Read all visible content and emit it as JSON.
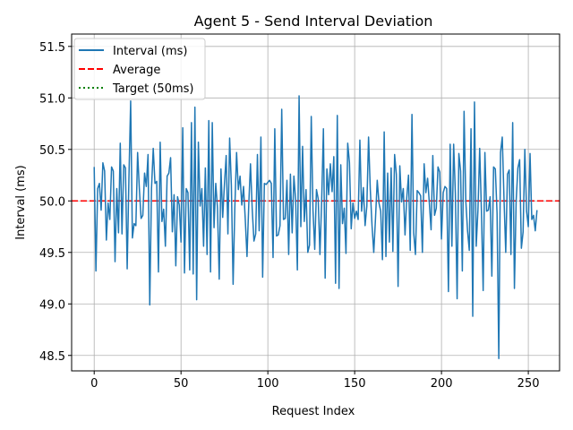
{
  "chart_data": {
    "type": "line",
    "title": "Agent 5 - Send Interval Deviation",
    "xlabel": "Request Index",
    "ylabel": "Interval (ms)",
    "xlim": [
      -13,
      268
    ],
    "ylim": [
      48.35,
      51.62
    ],
    "x_ticks": [
      0,
      50,
      100,
      150,
      200,
      250
    ],
    "y_ticks": [
      48.5,
      49.0,
      49.5,
      50.0,
      50.5,
      51.0,
      51.5
    ],
    "y_tick_labels": [
      "48.5",
      "49.0",
      "49.5",
      "50.0",
      "50.5",
      "51.0",
      "51.5"
    ],
    "grid": true,
    "legend_position": "upper-left",
    "series": [
      {
        "name": "Interval (ms)",
        "color": "#1f77b4",
        "style": "solid",
        "x_start": 0,
        "x_step": 1,
        "values": [
          50.33,
          49.32,
          50.12,
          50.17,
          49.91,
          50.37,
          50.29,
          49.62,
          49.98,
          49.82,
          50.33,
          50.29,
          49.41,
          50.12,
          49.69,
          50.56,
          49.68,
          50.35,
          50.32,
          49.34,
          50.22,
          50.97,
          49.64,
          49.78,
          49.76,
          50.47,
          50.12,
          49.83,
          49.86,
          50.27,
          50.14,
          50.45,
          48.99,
          50.12,
          50.51,
          50.17,
          50.19,
          49.31,
          50.57,
          49.8,
          49.92,
          49.56,
          50.24,
          50.27,
          50.42,
          49.7,
          50.06,
          49.37,
          50.04,
          49.96,
          49.6,
          50.71,
          49.3,
          50.12,
          50.08,
          49.33,
          50.76,
          49.29,
          50.91,
          49.04,
          50.57,
          49.95,
          50.12,
          49.56,
          50.32,
          49.48,
          50.78,
          49.31,
          50.76,
          49.74,
          50.17,
          49.93,
          49.24,
          50.31,
          49.84,
          50.16,
          50.44,
          49.68,
          50.61,
          50.15,
          49.19,
          49.94,
          50.47,
          50.11,
          50.24,
          49.96,
          50.14,
          49.82,
          49.46,
          49.96,
          50.36,
          49.92,
          49.61,
          49.68,
          50.45,
          49.71,
          50.62,
          49.26,
          50.17,
          50.16,
          50.18,
          50.2,
          50.17,
          49.45,
          50.7,
          49.66,
          49.67,
          49.76,
          50.89,
          49.82,
          49.83,
          50.2,
          49.48,
          50.26,
          49.69,
          50.24,
          50.01,
          49.33,
          51.02,
          49.75,
          50.53,
          49.8,
          50.11,
          49.5,
          49.57,
          50.82,
          49.91,
          49.53,
          50.11,
          50.02,
          49.48,
          50.0,
          50.7,
          49.25,
          50.31,
          50.06,
          50.36,
          50.09,
          50.43,
          49.2,
          50.83,
          49.15,
          50.35,
          49.78,
          49.93,
          49.49,
          50.56,
          50.37,
          49.73,
          49.98,
          49.83,
          49.9,
          49.82,
          50.59,
          49.9,
          50.13,
          49.76,
          49.95,
          50.62,
          50.11,
          49.76,
          49.5,
          49.83,
          50.2,
          49.98,
          49.9,
          49.43,
          50.67,
          49.46,
          50.27,
          49.6,
          50.32,
          49.51,
          50.45,
          50.26,
          49.17,
          50.34,
          49.99,
          50.12,
          49.67,
          50.03,
          50.25,
          49.52,
          50.84,
          49.69,
          49.48,
          50.1,
          50.08,
          50.05,
          49.5,
          50.36,
          50.08,
          50.22,
          49.98,
          49.72,
          50.44,
          49.86,
          49.93,
          50.33,
          50.28,
          49.63,
          50.08,
          50.14,
          50.12,
          49.12,
          50.55,
          49.56,
          50.55,
          50.07,
          49.05,
          50.46,
          50.29,
          49.32,
          50.87,
          50.0,
          49.71,
          49.52,
          50.7,
          48.88,
          50.96,
          49.56,
          49.91,
          50.51,
          49.9,
          49.13,
          50.47,
          49.9,
          49.91,
          50.04,
          49.27,
          50.33,
          50.31,
          49.88,
          48.47,
          50.47,
          50.62,
          50.02,
          49.5,
          50.26,
          50.3,
          49.48,
          50.76,
          49.15,
          50.0,
          50.32,
          50.4,
          49.54,
          49.7,
          50.5,
          49.9,
          49.75,
          50.46,
          49.82,
          49.86,
          49.71,
          49.91
        ]
      },
      {
        "name": "Average",
        "color": "#ff0000",
        "style": "dashed",
        "y": 50.0
      },
      {
        "name": "Target (50ms)",
        "color": "#008000",
        "style": "dotted",
        "y": 50.0
      }
    ]
  }
}
